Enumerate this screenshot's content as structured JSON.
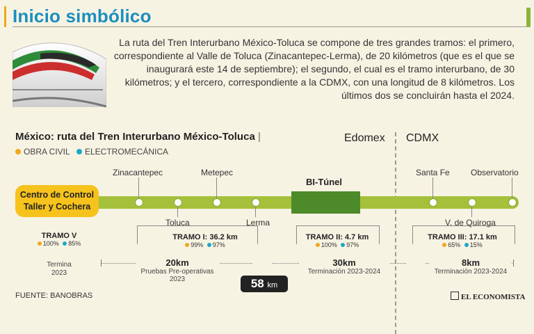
{
  "header": {
    "title": "Inicio simbólico",
    "intro": "La ruta del Tren Interurbano México-Toluca se compone de tres grandes tramos: el primero, correspondiente al Valle de Toluca (Zinacantepec-Lerma), de 20 kilómetros (que es el que se inaugurará este 14 de septiembre); el segundo, el cual es el tramo interurbano, de 30 kilómetros; y el tercero, correspondiente a la CDMX, con una longitud de 8 kilómetros. Los últimos dos se concluirán hasta el 2024."
  },
  "map": {
    "title": "México: ruta del Tren Interurbano México-Toluca",
    "legend": [
      {
        "label": "OBRA CIVIL",
        "color": "#f2a71c"
      },
      {
        "label": "ELECTROMECÁNICA",
        "color": "#1aa9c9"
      }
    ],
    "regions": {
      "left": "Edomex",
      "right": "CDMX"
    },
    "control_center": {
      "line1": "Centro de Control",
      "line2": "Taller y Cochera"
    },
    "tunnel": "BI-Túnel",
    "stations_top": [
      "Zinacantepec",
      "Metepec",
      "Santa Fe",
      "Observatorio"
    ],
    "stations_bottom": [
      "Toluca",
      "Lerma",
      "V. de Quiroga"
    ]
  },
  "tramos": [
    {
      "name": "TRAMO V",
      "civil": "100%",
      "electro": "85%",
      "note_line1": "Termina",
      "note_line2": "2023"
    },
    {
      "name": "TRAMO I: 36.2 km",
      "civil": "99%",
      "electro": "97%"
    },
    {
      "name": "TRAMO II: 4.7 km",
      "civil": "100%",
      "electro": "97%"
    },
    {
      "name": "TRAMO III: 17.1 km",
      "civil": "65%",
      "electro": "15%"
    }
  ],
  "segments": [
    {
      "km": "20km",
      "note": "Pruebas Pre-operativas 2023"
    },
    {
      "km": "30km",
      "note": "Terminación 2023-2024"
    },
    {
      "km": "8km",
      "note": "Terminación 2023-2024"
    }
  ],
  "total": {
    "value": "58",
    "unit": "km"
  },
  "footer": {
    "source": "FUENTE: BANOBRAS",
    "brand": "EL ECONOMISTA"
  }
}
